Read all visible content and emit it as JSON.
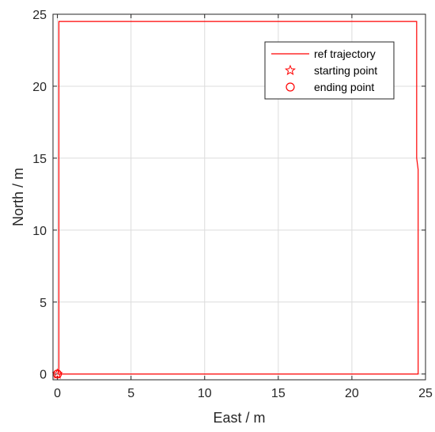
{
  "chart_data": {
    "type": "line",
    "title": "",
    "xlabel": "East / m",
    "ylabel": "North / m",
    "xlim": [
      -0.3,
      25
    ],
    "ylim": [
      -0.4,
      25
    ],
    "xticks": [
      0,
      5,
      10,
      15,
      20,
      25
    ],
    "yticks": [
      0,
      5,
      10,
      15,
      20,
      25
    ],
    "xtick_labels": [
      "0",
      "5",
      "10",
      "15",
      "20",
      "25"
    ],
    "ytick_labels": [
      "0",
      "5",
      "10",
      "15",
      "20",
      "25"
    ],
    "grid": true,
    "legend": {
      "position": "top-right",
      "entries": [
        "ref trajectory",
        "starting point",
        "ending point"
      ]
    },
    "series": [
      {
        "name": "ref trajectory",
        "kind": "line",
        "color": "#ff0000",
        "x": [
          0,
          24.5,
          24.5,
          24.4,
          24.4,
          0.1,
          0.1,
          0
        ],
        "y": [
          0,
          0,
          14.2,
          15.0,
          24.5,
          24.5,
          0.2,
          0
        ]
      },
      {
        "name": "starting point",
        "kind": "marker",
        "marker": "star",
        "color": "#ff0000",
        "x": [
          0
        ],
        "y": [
          0
        ]
      },
      {
        "name": "ending point",
        "kind": "marker",
        "marker": "circle",
        "color": "#ff0000",
        "x": [
          0
        ],
        "y": [
          0
        ]
      }
    ]
  }
}
